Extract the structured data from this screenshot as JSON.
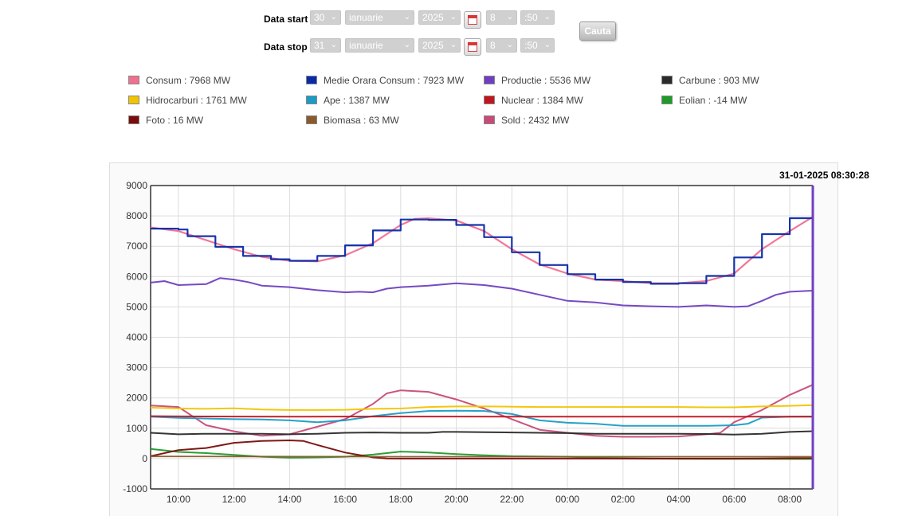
{
  "form": {
    "start_label": "Data start",
    "stop_label": "Data stop",
    "start": {
      "day": "30",
      "month": "ianuarie",
      "year": "2025",
      "hour": "8",
      "minute": ":50"
    },
    "stop": {
      "day": "31",
      "month": "ianuarie",
      "year": "2025",
      "hour": "8",
      "minute": ":50"
    },
    "search_label": "Cauta"
  },
  "legend": [
    {
      "label": "Consum : 7968 MW",
      "color": "#f07090",
      "icon": "legend-swatch"
    },
    {
      "label": "Medie Orara Consum : 7923 MW",
      "color": "#0a2aa8"
    },
    {
      "label": "Productie : 5536 MW",
      "color": "#6f3fc0"
    },
    {
      "label": "Carbune : 903 MW",
      "color": "#2a2a2a"
    },
    {
      "label": "Hidrocarburi : 1761 MW",
      "color": "#f2c400"
    },
    {
      "label": "Ape : 1387 MW",
      "color": "#1a9cc4"
    },
    {
      "label": "Nuclear : 1384 MW",
      "color": "#c0151e"
    },
    {
      "label": "Eolian : -14 MW",
      "color": "#1f9a2a"
    },
    {
      "label": "Foto : 16 MW",
      "color": "#7a0c0c"
    },
    {
      "label": "Biomasa : 63 MW",
      "color": "#8a5a2a"
    },
    {
      "label": "Sold : 2432 MW",
      "color": "#c84a78"
    }
  ],
  "timestamp": "31-01-2025 08:30:28",
  "chart_data": {
    "type": "line",
    "x_start_hour": 9.0,
    "x_end_hour": 32.83,
    "ylim": [
      -1000,
      9000
    ],
    "yticks": [
      -1000,
      0,
      1000,
      2000,
      3000,
      4000,
      5000,
      6000,
      7000,
      8000,
      9000
    ],
    "xticks": [
      {
        "h": 10,
        "label": "10:00"
      },
      {
        "h": 12,
        "label": "12:00"
      },
      {
        "h": 14,
        "label": "14:00"
      },
      {
        "h": 16,
        "label": "16:00"
      },
      {
        "h": 18,
        "label": "18:00"
      },
      {
        "h": 20,
        "label": "20:00"
      },
      {
        "h": 22,
        "label": "22:00"
      },
      {
        "h": 24,
        "label": "00:00"
      },
      {
        "h": 26,
        "label": "02:00"
      },
      {
        "h": 28,
        "label": "04:00"
      },
      {
        "h": 30,
        "label": "06:00"
      },
      {
        "h": 32,
        "label": "08:00"
      }
    ],
    "grid": true,
    "series": [
      {
        "name": "Consum",
        "color": "#f07090",
        "step": false,
        "width": 2.2,
        "points": [
          [
            9,
            7620
          ],
          [
            10,
            7500
          ],
          [
            11,
            7200
          ],
          [
            12,
            6900
          ],
          [
            13,
            6650
          ],
          [
            14,
            6520
          ],
          [
            15,
            6500
          ],
          [
            16,
            6700
          ],
          [
            17,
            7100
          ],
          [
            18,
            7700
          ],
          [
            18.5,
            7900
          ],
          [
            19,
            7920
          ],
          [
            20,
            7850
          ],
          [
            21,
            7500
          ],
          [
            22,
            6900
          ],
          [
            23,
            6400
          ],
          [
            24,
            6100
          ],
          [
            25,
            5900
          ],
          [
            26,
            5850
          ],
          [
            27,
            5780
          ],
          [
            28,
            5780
          ],
          [
            29,
            5850
          ],
          [
            30,
            6100
          ],
          [
            31,
            6900
          ],
          [
            32,
            7500
          ],
          [
            32.83,
            7968
          ]
        ]
      },
      {
        "name": "Medie Orara Consum",
        "color": "#0a2aa8",
        "step": true,
        "width": 2.2,
        "points": [
          [
            9,
            7580
          ],
          [
            10,
            7550
          ],
          [
            10.33,
            7330
          ],
          [
            11.33,
            6980
          ],
          [
            12.33,
            6680
          ],
          [
            13.33,
            6570
          ],
          [
            14,
            6520
          ],
          [
            15,
            6680
          ],
          [
            16,
            7030
          ],
          [
            17,
            7520
          ],
          [
            18,
            7880
          ],
          [
            19,
            7870
          ],
          [
            20,
            7700
          ],
          [
            21,
            7300
          ],
          [
            22,
            6800
          ],
          [
            23,
            6380
          ],
          [
            24,
            6080
          ],
          [
            25,
            5900
          ],
          [
            26,
            5820
          ],
          [
            27,
            5760
          ],
          [
            28,
            5780
          ],
          [
            29,
            6020
          ],
          [
            30,
            6630
          ],
          [
            31,
            7400
          ],
          [
            32,
            7923
          ],
          [
            32.83,
            7923
          ]
        ]
      },
      {
        "name": "Productie",
        "color": "#6f3fc0",
        "step": false,
        "width": 2,
        "points": [
          [
            9,
            5800
          ],
          [
            9.5,
            5850
          ],
          [
            10,
            5720
          ],
          [
            11,
            5750
          ],
          [
            11.5,
            5950
          ],
          [
            12,
            5900
          ],
          [
            12.5,
            5820
          ],
          [
            13,
            5700
          ],
          [
            14,
            5650
          ],
          [
            15,
            5550
          ],
          [
            16,
            5480
          ],
          [
            16.5,
            5500
          ],
          [
            17,
            5480
          ],
          [
            17.5,
            5600
          ],
          [
            18,
            5650
          ],
          [
            19,
            5700
          ],
          [
            20,
            5780
          ],
          [
            21,
            5720
          ],
          [
            22,
            5600
          ],
          [
            23,
            5400
          ],
          [
            24,
            5200
          ],
          [
            25,
            5150
          ],
          [
            26,
            5050
          ],
          [
            27,
            5020
          ],
          [
            28,
            5000
          ],
          [
            29,
            5050
          ],
          [
            30,
            5000
          ],
          [
            30.5,
            5020
          ],
          [
            31,
            5200
          ],
          [
            31.5,
            5400
          ],
          [
            32,
            5500
          ],
          [
            32.83,
            5536
          ]
        ]
      },
      {
        "name": "Sold",
        "color": "#c84a78",
        "step": false,
        "width": 2,
        "points": [
          [
            9,
            1750
          ],
          [
            10,
            1700
          ],
          [
            11,
            1100
          ],
          [
            12,
            900
          ],
          [
            13,
            750
          ],
          [
            14,
            800
          ],
          [
            15,
            1050
          ],
          [
            16,
            1300
          ],
          [
            17,
            1800
          ],
          [
            17.5,
            2150
          ],
          [
            18,
            2250
          ],
          [
            19,
            2200
          ],
          [
            20,
            1950
          ],
          [
            21,
            1650
          ],
          [
            22,
            1300
          ],
          [
            23,
            950
          ],
          [
            24,
            850
          ],
          [
            25,
            750
          ],
          [
            26,
            720
          ],
          [
            27,
            720
          ],
          [
            28,
            730
          ],
          [
            29,
            800
          ],
          [
            29.5,
            850
          ],
          [
            30,
            1200
          ],
          [
            31,
            1600
          ],
          [
            32,
            2100
          ],
          [
            32.83,
            2432
          ]
        ]
      },
      {
        "name": "Hidrocarburi",
        "color": "#f2c400",
        "step": false,
        "width": 2,
        "points": [
          [
            9,
            1680
          ],
          [
            10,
            1650
          ],
          [
            11,
            1640
          ],
          [
            12,
            1660
          ],
          [
            13,
            1620
          ],
          [
            14,
            1600
          ],
          [
            15,
            1600
          ],
          [
            16,
            1610
          ],
          [
            17,
            1640
          ],
          [
            18,
            1650
          ],
          [
            19,
            1700
          ],
          [
            20,
            1720
          ],
          [
            21,
            1720
          ],
          [
            22,
            1710
          ],
          [
            23,
            1700
          ],
          [
            24,
            1700
          ],
          [
            25,
            1700
          ],
          [
            26,
            1700
          ],
          [
            27,
            1700
          ],
          [
            28,
            1700
          ],
          [
            29,
            1690
          ],
          [
            30,
            1690
          ],
          [
            31,
            1720
          ],
          [
            32,
            1740
          ],
          [
            32.83,
            1761
          ]
        ]
      },
      {
        "name": "Ape",
        "color": "#1a9cc4",
        "step": false,
        "width": 2,
        "points": [
          [
            9,
            1380
          ],
          [
            10,
            1340
          ],
          [
            11,
            1320
          ],
          [
            12,
            1300
          ],
          [
            13,
            1290
          ],
          [
            14,
            1260
          ],
          [
            15,
            1200
          ],
          [
            16,
            1260
          ],
          [
            17,
            1400
          ],
          [
            18,
            1500
          ],
          [
            19,
            1570
          ],
          [
            20,
            1580
          ],
          [
            21,
            1570
          ],
          [
            22,
            1470
          ],
          [
            23,
            1260
          ],
          [
            24,
            1180
          ],
          [
            25,
            1150
          ],
          [
            26,
            1080
          ],
          [
            27,
            1080
          ],
          [
            28,
            1080
          ],
          [
            29,
            1080
          ],
          [
            30,
            1100
          ],
          [
            30.5,
            1150
          ],
          [
            31,
            1350
          ],
          [
            32,
            1380
          ],
          [
            32.83,
            1387
          ]
        ]
      },
      {
        "name": "Nuclear",
        "color": "#c0151e",
        "step": false,
        "width": 2,
        "points": [
          [
            9,
            1400
          ],
          [
            10,
            1390
          ],
          [
            12,
            1385
          ],
          [
            14,
            1380
          ],
          [
            16,
            1385
          ],
          [
            18,
            1385
          ],
          [
            20,
            1385
          ],
          [
            22,
            1384
          ],
          [
            24,
            1384
          ],
          [
            26,
            1384
          ],
          [
            28,
            1384
          ],
          [
            30,
            1384
          ],
          [
            32,
            1384
          ],
          [
            32.83,
            1384
          ]
        ]
      },
      {
        "name": "Carbune",
        "color": "#2a2a2a",
        "step": false,
        "width": 2,
        "points": [
          [
            9,
            850
          ],
          [
            10,
            800
          ],
          [
            11,
            820
          ],
          [
            12,
            820
          ],
          [
            13,
            820
          ],
          [
            14,
            800
          ],
          [
            15,
            820
          ],
          [
            16,
            850
          ],
          [
            17,
            860
          ],
          [
            18,
            850
          ],
          [
            19,
            850
          ],
          [
            19.5,
            880
          ],
          [
            20,
            880
          ],
          [
            21,
            870
          ],
          [
            22,
            860
          ],
          [
            23,
            850
          ],
          [
            24,
            840
          ],
          [
            25,
            820
          ],
          [
            26,
            820
          ],
          [
            27,
            820
          ],
          [
            28,
            820
          ],
          [
            29,
            810
          ],
          [
            30,
            790
          ],
          [
            31,
            820
          ],
          [
            32,
            880
          ],
          [
            32.83,
            903
          ]
        ]
      },
      {
        "name": "Eolian",
        "color": "#1f9a2a",
        "step": false,
        "width": 2,
        "points": [
          [
            9,
            320
          ],
          [
            10,
            220
          ],
          [
            11,
            180
          ],
          [
            12,
            120
          ],
          [
            13,
            60
          ],
          [
            14,
            30
          ],
          [
            15,
            40
          ],
          [
            16,
            60
          ],
          [
            17,
            130
          ],
          [
            18,
            230
          ],
          [
            19,
            200
          ],
          [
            20,
            150
          ],
          [
            21,
            110
          ],
          [
            22,
            80
          ],
          [
            23,
            70
          ],
          [
            24,
            60
          ],
          [
            25,
            30
          ],
          [
            26,
            10
          ],
          [
            27,
            0
          ],
          [
            28,
            -5
          ],
          [
            29,
            -10
          ],
          [
            30,
            -10
          ],
          [
            31,
            -10
          ],
          [
            32,
            -12
          ],
          [
            32.83,
            -14
          ]
        ]
      },
      {
        "name": "Foto",
        "color": "#7a0c0c",
        "step": false,
        "width": 2,
        "points": [
          [
            9,
            80
          ],
          [
            10,
            280
          ],
          [
            11,
            350
          ],
          [
            12,
            520
          ],
          [
            13,
            580
          ],
          [
            14,
            600
          ],
          [
            14.5,
            580
          ],
          [
            15,
            450
          ],
          [
            16,
            200
          ],
          [
            17,
            40
          ],
          [
            17.5,
            5
          ],
          [
            18,
            0
          ],
          [
            20,
            0
          ],
          [
            22,
            0
          ],
          [
            24,
            0
          ],
          [
            26,
            0
          ],
          [
            28,
            0
          ],
          [
            30,
            0
          ],
          [
            31,
            5
          ],
          [
            32,
            10
          ],
          [
            32.83,
            16
          ]
        ]
      },
      {
        "name": "Biomasa",
        "color": "#8a5a2a",
        "step": false,
        "width": 1.8,
        "points": [
          [
            9,
            70
          ],
          [
            12,
            68
          ],
          [
            15,
            65
          ],
          [
            18,
            64
          ],
          [
            21,
            63
          ],
          [
            24,
            62
          ],
          [
            27,
            62
          ],
          [
            30,
            62
          ],
          [
            32.83,
            63
          ]
        ]
      }
    ]
  }
}
